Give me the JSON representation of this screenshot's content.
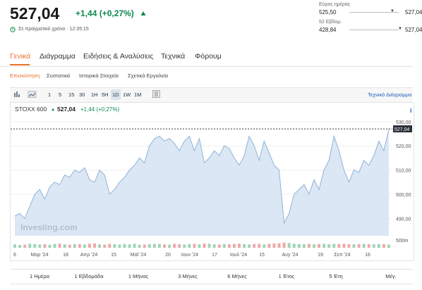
{
  "quote": {
    "price": "527,04",
    "change": "+1,44 (+0,27%)",
    "status": "Σε πραγματικό χρόνο · 12:35:15"
  },
  "ranges": [
    {
      "label": "Εύρος ημέρας",
      "low": "525,50",
      "high": "527,04"
    },
    {
      "label": "52 Εβδομ.",
      "low": "428,84",
      "high": "527,04"
    }
  ],
  "tabs": [
    "Γενικά",
    "Διάγραμμα",
    "Ειδήσεις & Αναλύσεις",
    "Τεχνικά",
    "Φόρουμ"
  ],
  "subtabs": [
    "Επισκόπηση",
    "Συστατικά",
    "Ιστορικά Στοιχεία",
    "Σχετικά Εργαλεία"
  ],
  "intervals": [
    "1",
    "5",
    "15",
    "30",
    "1H",
    "5H",
    "1D",
    "1W",
    "1M"
  ],
  "chart_link": "Τεχνικό Διάγραμμα",
  "chart": {
    "name": "STOXX 600",
    "last": "527,04",
    "change": "+1,44 (+0,27%)",
    "watermark": "Investing.com",
    "values": [
      491,
      492,
      490,
      495,
      500,
      502,
      498,
      503,
      505,
      504,
      508,
      507,
      510,
      509,
      511,
      506,
      505,
      510,
      508,
      500,
      502,
      505,
      507,
      510,
      512,
      515,
      513,
      520,
      523,
      524,
      522,
      523,
      521,
      518,
      522,
      524,
      518,
      523,
      513,
      515,
      518,
      516,
      520,
      519,
      515,
      512,
      516,
      524,
      520,
      514,
      522,
      517,
      512,
      510,
      488,
      492,
      500,
      502,
      504,
      500,
      506,
      502,
      510,
      514,
      524,
      518,
      510,
      505,
      510,
      509,
      514,
      512,
      516,
      522,
      518,
      527
    ],
    "volume": [
      220,
      180,
      200,
      260,
      240,
      210,
      230,
      190,
      250,
      270,
      220,
      200,
      240,
      230,
      210,
      260,
      280,
      220,
      200,
      250,
      230,
      210,
      240,
      220,
      260,
      200,
      210,
      230,
      250,
      240,
      220,
      200,
      260,
      230,
      210,
      240,
      250,
      220,
      280,
      260,
      230,
      210,
      240,
      220,
      250,
      270,
      230,
      210,
      240,
      260,
      220,
      250,
      280,
      300,
      340,
      310,
      260,
      240,
      230,
      250,
      220,
      240,
      260,
      230,
      250,
      240,
      260,
      230,
      220,
      240,
      250,
      230,
      220,
      240,
      230,
      200
    ],
    "ylim": [
      482.8,
      532.3
    ],
    "yticks": [
      {
        "value": 530,
        "label": "530,00"
      },
      {
        "value": 520,
        "label": "520,00"
      },
      {
        "value": 510,
        "label": "510,00"
      },
      {
        "value": 500,
        "label": "500,00"
      },
      {
        "value": 490,
        "label": "490,00"
      }
    ],
    "price_line": {
      "value": 527.04,
      "label": "527,04"
    },
    "vol_ylim": [
      0,
      550
    ],
    "vol_ticks": [
      {
        "value": 500,
        "label": "500m"
      }
    ],
    "x_labels": [
      "6",
      "Μαρ '24",
      "18",
      "Απρ '24",
      "15",
      "Μαΐ '24",
      "20",
      "Ιουν '24",
      "17",
      "Ιουλ '24",
      "15",
      "Αυγ '24",
      "19",
      "Σεπ '24",
      "16"
    ]
  },
  "periods": [
    "1 Ημέρα",
    "1 Εβδομάδα",
    "1 Μήνας",
    "3 Μήνες",
    "6 Μήνες",
    "1 Έτος",
    "5 Έτη",
    "Μέγ."
  ]
}
